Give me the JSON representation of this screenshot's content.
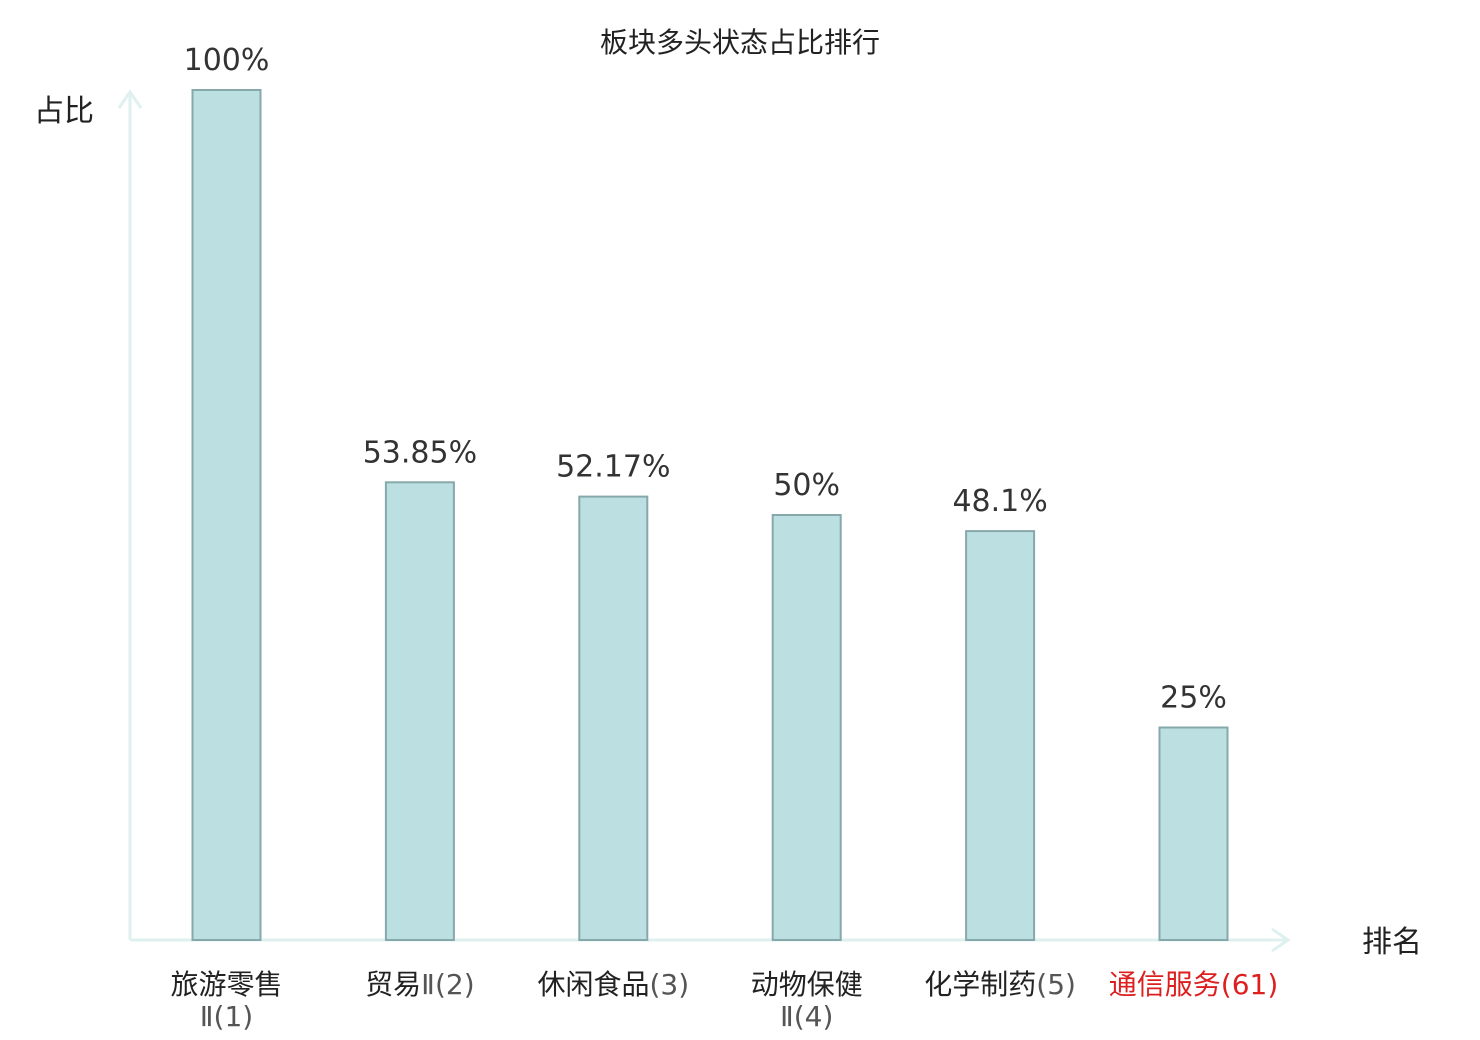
{
  "chart_data": {
    "type": "bar",
    "title": "板块多头状态占比排行",
    "xlabel": "排名",
    "ylabel": "占比",
    "ylim": [
      0,
      100
    ],
    "grid": false,
    "categories": [
      {
        "name": "旅游零售",
        "suffix": "Ⅱ(1)",
        "wrap": true,
        "highlight": false
      },
      {
        "name": "贸易",
        "suffix": "Ⅱ(2)",
        "wrap": false,
        "highlight": false
      },
      {
        "name": "休闲食品",
        "suffix": "(3)",
        "wrap": false,
        "highlight": false
      },
      {
        "name": "动物保健",
        "suffix": "Ⅱ(4)",
        "wrap": true,
        "highlight": false
      },
      {
        "name": "化学制药",
        "suffix": "(5)",
        "wrap": false,
        "highlight": false
      },
      {
        "name": "通信服务",
        "suffix": "(61)",
        "wrap": false,
        "highlight": true
      }
    ],
    "values": [
      100,
      53.85,
      52.17,
      50,
      48.1,
      25
    ],
    "value_labels": [
      "100%",
      "53.85%",
      "52.17%",
      "50%",
      "48.1%",
      "25%"
    ]
  },
  "colors": {
    "bar_fill": "#bce0e2",
    "bar_stroke": "#86a8ab",
    "axis": "#dff1ef",
    "highlight": "#dd1f1f"
  }
}
